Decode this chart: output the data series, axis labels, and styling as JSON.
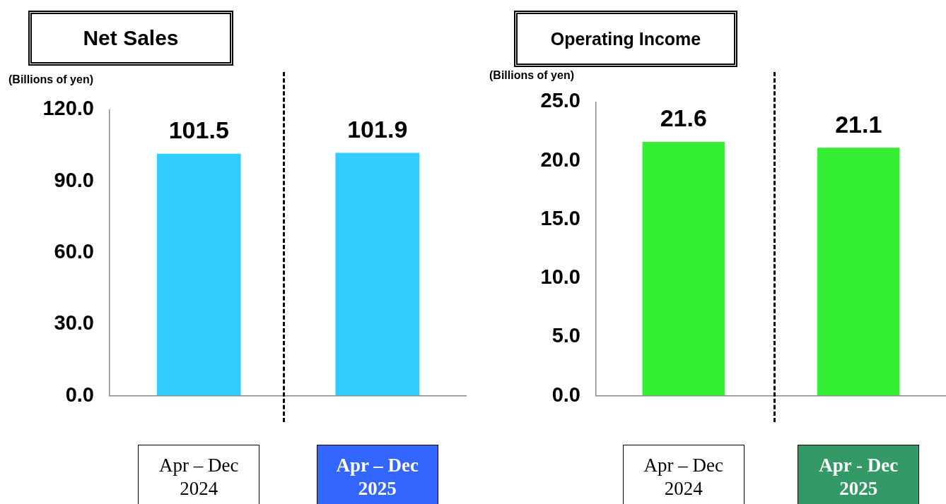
{
  "chart_data": [
    {
      "type": "bar",
      "title": "Net Sales",
      "ylabel": "(Billions of yen)",
      "categories": [
        "Apr – Dec 2024",
        "Apr – Dec 2025"
      ],
      "values": [
        101.5,
        101.9
      ],
      "color": "#33ccff",
      "ylim": [
        0,
        120
      ],
      "yticks": [
        {
          "value": 0,
          "label": "0.0"
        },
        {
          "value": 30,
          "label": "30.0"
        },
        {
          "value": 60,
          "label": "60.0"
        },
        {
          "value": 90,
          "label": "90.0"
        },
        {
          "value": 120,
          "label": "120.0"
        }
      ],
      "data_labels": true,
      "grid": false,
      "legend": false
    },
    {
      "type": "bar",
      "title": "Operating Income",
      "ylabel": "(Billions of yen)",
      "categories": [
        "Apr – Dec 2024",
        "Apr - Dec 2025"
      ],
      "values": [
        21.6,
        21.1
      ],
      "color": "#33ee33",
      "ylim": [
        0,
        25
      ],
      "yticks": [
        {
          "value": 0,
          "label": "0.0"
        },
        {
          "value": 5,
          "label": "5.0"
        },
        {
          "value": 10,
          "label": "10.0"
        },
        {
          "value": 15,
          "label": "15.0"
        },
        {
          "value": 20,
          "label": "20.0"
        },
        {
          "value": 25,
          "label": "25.0"
        }
      ],
      "data_labels": true,
      "grid": false,
      "legend": false
    }
  ]
}
